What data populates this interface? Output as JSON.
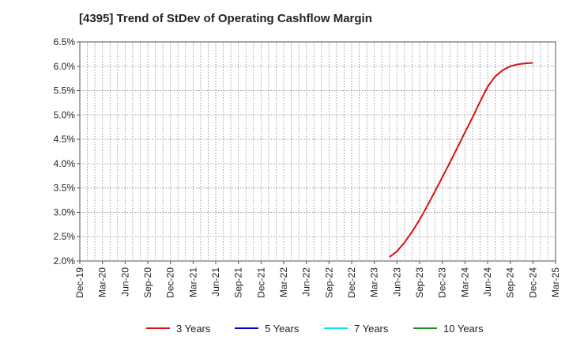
{
  "title": "[4395]  Trend of StDev of Operating Cashflow Margin",
  "chart_data": {
    "type": "line",
    "title": "[4395]  Trend of StDev of Operating Cashflow Margin",
    "xlabel": "",
    "ylabel": "",
    "x_ticks": [
      "Dec-19",
      "Mar-20",
      "Jun-20",
      "Sep-20",
      "Dec-20",
      "Mar-21",
      "Jun-21",
      "Sep-21",
      "Dec-21",
      "Mar-22",
      "Jun-22",
      "Sep-22",
      "Dec-22",
      "Mar-23",
      "Jun-23",
      "Sep-23",
      "Dec-23",
      "Mar-24",
      "Jun-24",
      "Sep-24",
      "Dec-24",
      "Mar-25"
    ],
    "y_ticks": [
      "2.0%",
      "2.5%",
      "3.0%",
      "3.5%",
      "4.0%",
      "4.5%",
      "5.0%",
      "5.5%",
      "6.0%",
      "6.5%"
    ],
    "ylim": [
      2.0,
      6.5
    ],
    "y_unit": "%",
    "grid": true,
    "legend_position": "bottom",
    "colors": {
      "3 Years": "#dd1111",
      "5 Years": "#0000cc",
      "7 Years": "#00e5ee",
      "10 Years": "#228b22"
    },
    "series": [
      {
        "name": "3 Years",
        "x": [
          "2023-05",
          "2023-06",
          "2023-07",
          "2023-08",
          "2023-09",
          "2023-10",
          "2023-11",
          "2023-12",
          "2024-01",
          "2024-02",
          "2024-03",
          "2024-04",
          "2024-05",
          "2024-06",
          "2024-07",
          "2024-08",
          "2024-09",
          "2024-10",
          "2024-11",
          "2024-12"
        ],
        "values": [
          2.08,
          2.2,
          2.38,
          2.6,
          2.85,
          3.13,
          3.42,
          3.72,
          4.02,
          4.33,
          4.64,
          4.95,
          5.27,
          5.58,
          5.79,
          5.92,
          6.0,
          6.04,
          6.06,
          6.07
        ]
      },
      {
        "name": "5 Years",
        "x": [],
        "values": []
      },
      {
        "name": "7 Years",
        "x": [],
        "values": []
      },
      {
        "name": "10 Years",
        "x": [],
        "values": []
      }
    ]
  }
}
